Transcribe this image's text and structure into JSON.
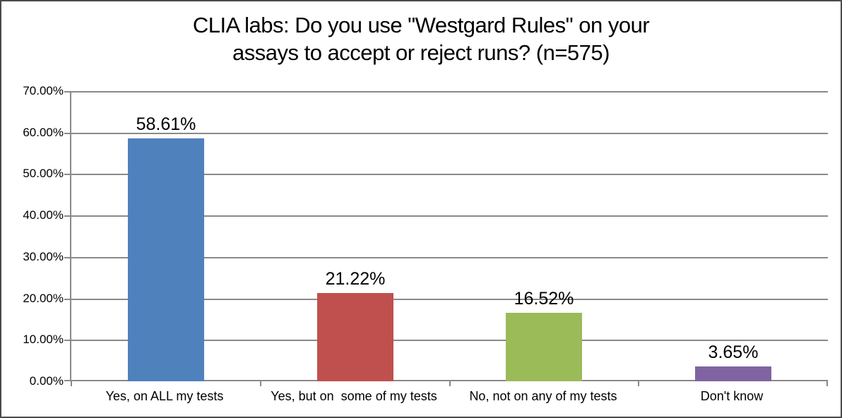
{
  "chart_data": {
    "type": "bar",
    "title": "CLIA labs: Do you use \"Westgard Rules\" on your assays to accept or reject runs? (n=575)",
    "title_lines": [
      "CLIA labs: Do you use \"Westgard Rules\" on your",
      "assays to accept or reject runs? (n=575)"
    ],
    "categories": [
      "Yes, on ALL my tests",
      "Yes, but on  some of my tests",
      "No, not on any of my tests",
      "Don't know"
    ],
    "values": [
      58.61,
      21.22,
      16.52,
      3.65
    ],
    "value_labels": [
      "58.61%",
      "21.22%",
      "16.52%",
      "3.65%"
    ],
    "bar_colors": [
      "#4f81bd",
      "#c0504d",
      "#9bbb59",
      "#8064a2"
    ],
    "bar_names": [
      "bar-yes-all-tests",
      "bar-yes-some-tests",
      "bar-no-tests",
      "bar-dont-know"
    ],
    "xlabel": "",
    "ylabel": "",
    "ylim": [
      0,
      70
    ],
    "ytick_step": 10,
    "ytick_labels": [
      "0.00%",
      "10.00%",
      "20.00%",
      "30.00%",
      "40.00%",
      "50.00%",
      "60.00%",
      "70.00%"
    ],
    "grid": "horizontal gridlines on",
    "gridline_color": "#898989",
    "axis_color": "#898989",
    "legend": "none",
    "text_color": "#000000",
    "background_color": "#ffffff"
  }
}
